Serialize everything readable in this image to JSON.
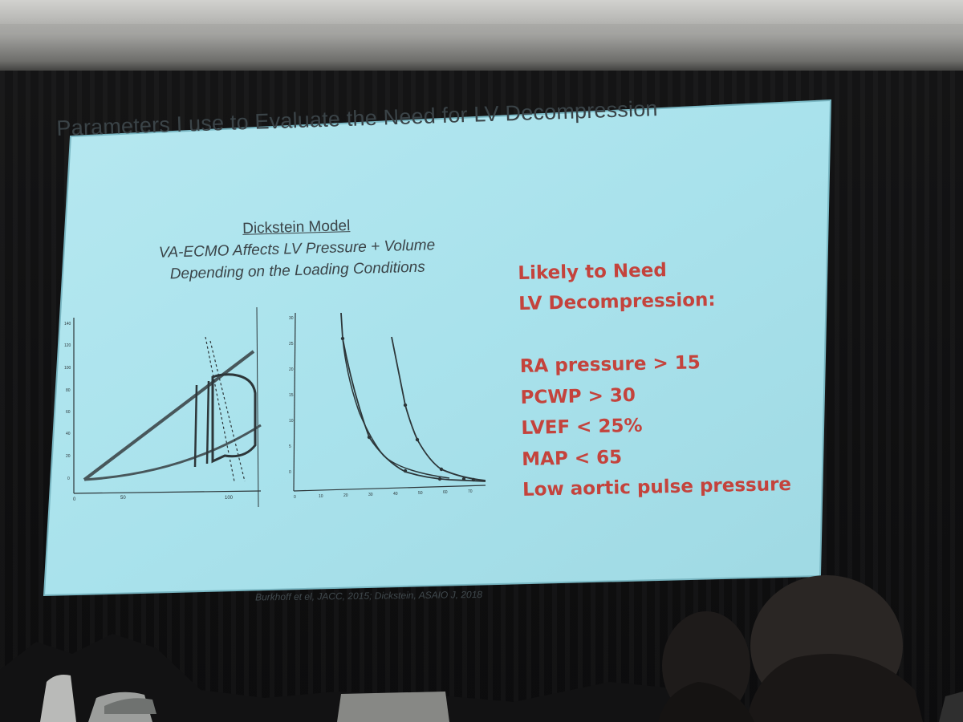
{
  "slide": {
    "title": "Parameters I use to Evaluate the Need for LV Decompression",
    "model_heading": "Dickstein Model",
    "model_line1": "VA-ECMO Affects LV Pressure + Volume",
    "model_line2": "Depending on the Loading Conditions",
    "need_line1": "Likely to Need",
    "need_line2": "LV Decompression:",
    "criteria": [
      "RA pressure > 15",
      "PCWP > 30",
      "LVEF < 25%",
      "MAP < 65",
      "Low aortic pulse pressure"
    ],
    "citation": "Burkhoff et el, JACC, 2015; Dickstein, ASAIO J, 2018",
    "colors": {
      "screen": "#a8e0ea",
      "title_text": "#3a4347",
      "criteria_text": "#c4433c"
    }
  },
  "left_plot": {
    "x_ticks": [
      "0",
      "50",
      "100"
    ]
  },
  "right_plot": {
    "x_ticks": [
      "0",
      "10",
      "20",
      "30",
      "40",
      "50",
      "60",
      "70"
    ],
    "y_ticks": [
      "0",
      "5",
      "10",
      "15",
      "20",
      "25",
      "30"
    ]
  }
}
